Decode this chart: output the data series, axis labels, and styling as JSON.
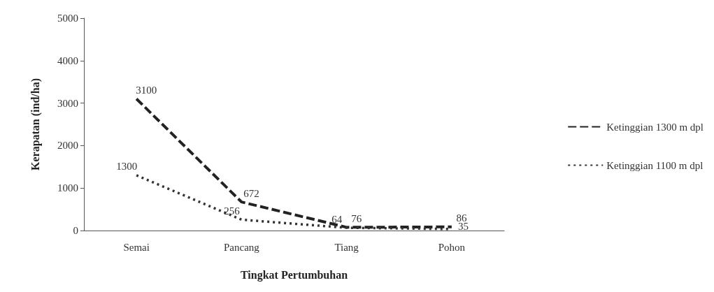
{
  "chart_data": {
    "type": "line",
    "xlabel": "Tingkat Pertumbuhan",
    "ylabel": "Kerapatan (ind/ha)",
    "categories": [
      "Semai",
      "Pancang",
      "Tiang",
      "Pohon"
    ],
    "series": [
      {
        "name": "Ketinggian 1300 m dpl",
        "color": "#222222",
        "line_style": "dashed",
        "values": [
          3100,
          672,
          76,
          86
        ]
      },
      {
        "name": "Ketinggian 1100 m dpl",
        "color": "#333333",
        "line_style": "dotted",
        "values": [
          1300,
          256,
          64,
          35
        ]
      }
    ],
    "data_labels": true,
    "ylim": [
      0,
      5000
    ],
    "yticks": [
      0,
      1000,
      2000,
      3000,
      4000,
      5000
    ],
    "grid": false,
    "legend": "right",
    "marker": "none"
  }
}
